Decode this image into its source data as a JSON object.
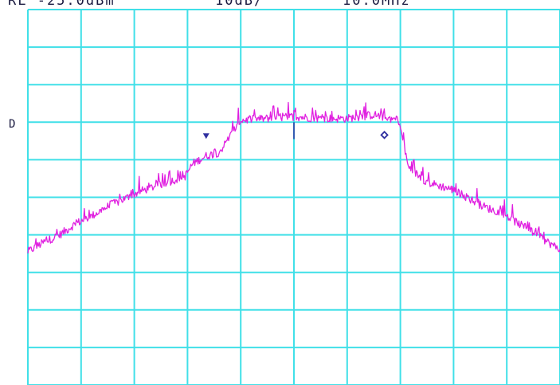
{
  "header": {
    "ref_level": "RL -25.0dBm",
    "scale": "10dB/",
    "span": "10.0MHz"
  },
  "display_line_label": "D",
  "colors": {
    "grid": "#40e0e8",
    "trace": "#e020e0",
    "marker": "#3030a0",
    "text": "#1a1a40",
    "background": "#ffffff"
  },
  "chart_data": {
    "type": "line",
    "title": "",
    "xlabel": "",
    "ylabel": "",
    "x_divisions": 10,
    "y_divisions": 10,
    "xlim": [
      0,
      10
    ],
    "ylim": [
      0,
      10
    ],
    "grid": true,
    "series": [
      {
        "x": [
          0.0,
          0.3,
          0.6,
          0.9,
          1.2,
          1.5,
          1.8,
          2.1,
          2.4,
          2.95,
          3.1,
          3.35,
          3.6,
          4.0,
          4.5,
          5.0,
          5.5,
          6.0,
          6.5,
          6.8,
          6.95,
          7.0,
          7.15,
          7.5,
          8.0,
          8.5,
          9.0,
          9.5,
          10.0
        ],
        "y": [
          3.55,
          3.8,
          4.0,
          4.3,
          4.5,
          4.75,
          4.95,
          5.15,
          5.3,
          5.55,
          5.9,
          6.1,
          6.2,
          7.05,
          7.1,
          7.15,
          7.1,
          7.1,
          7.2,
          7.1,
          7.05,
          6.85,
          5.8,
          5.4,
          5.2,
          4.8,
          4.5,
          4.05,
          3.6
        ]
      }
    ],
    "markers": [
      {
        "symbol": "triangle-down",
        "x": 3.35,
        "y": 6.62
      },
      {
        "symbol": "diamond",
        "x": 6.7,
        "y": 6.66
      }
    ],
    "display_line_y": 6.05
  }
}
